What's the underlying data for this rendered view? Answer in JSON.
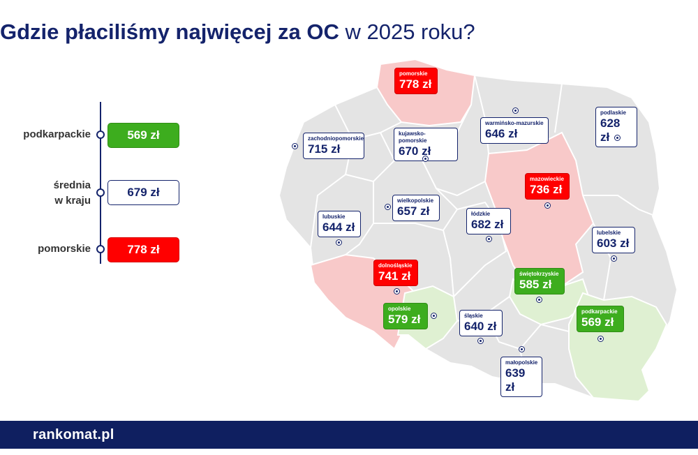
{
  "title": {
    "bold": "Gdzie płaciliśmy najwięcej za OC",
    "light": " w 2025 roku?"
  },
  "legend": [
    {
      "label": "podkarpackie",
      "value": "569 zł",
      "style": "green"
    },
    {
      "label_line1": "średnia",
      "label_line2": "w kraju",
      "value": "679 zł",
      "style": "white"
    },
    {
      "label": "pomorskie",
      "value": "778 zł",
      "style": "red"
    }
  ],
  "regions": {
    "pomorskie": {
      "name": "pomorskie",
      "value": "778 zł",
      "style": "red"
    },
    "zachodniopomorskie": {
      "name": "zachodniopomorskie",
      "value": "715 zł",
      "style": "white"
    },
    "kujawsko_pomorskie": {
      "name": "kujawsko-pomorskie",
      "value": "670 zł",
      "style": "white"
    },
    "warminsko_mazurskie": {
      "name": "warmińsko-mazurskie",
      "value": "646 zł",
      "style": "white"
    },
    "podlaskie": {
      "name": "podlaskie",
      "value": "628 zł",
      "style": "white"
    },
    "mazowieckie": {
      "name": "mazowieckie",
      "value": "736 zł",
      "style": "red"
    },
    "wielkopolskie": {
      "name": "wielkopolskie",
      "value": "657 zł",
      "style": "white"
    },
    "lubuskie": {
      "name": "lubuskie",
      "value": "644 zł",
      "style": "white"
    },
    "lodzkie": {
      "name": "łódzkie",
      "value": "682 zł",
      "style": "white"
    },
    "lubelskie": {
      "name": "lubelskie",
      "value": "603 zł",
      "style": "white"
    },
    "dolnoslaskie": {
      "name": "dolnośląskie",
      "value": "741 zł",
      "style": "red"
    },
    "swietokrzyskie": {
      "name": "świętokrzyskie",
      "value": "585 zł",
      "style": "green"
    },
    "opolskie": {
      "name": "opolskie",
      "value": "579 zł",
      "style": "green"
    },
    "slaskie": {
      "name": "śląskie",
      "value": "640 zł",
      "style": "white"
    },
    "podkarpackie": {
      "name": "podkarpackie",
      "value": "569 zł",
      "style": "green"
    },
    "malopolskie": {
      "name": "małopolskie",
      "value": "639 zł",
      "style": "white"
    }
  },
  "colors": {
    "navy": "#14236b",
    "green": "#3dad1e",
    "red": "#ff0000",
    "map_grey": "#e4e4e4",
    "map_pink": "#f8c9c9",
    "map_lightgreen": "#dff0d2"
  },
  "footer": {
    "logo": "rankomat.pl"
  }
}
